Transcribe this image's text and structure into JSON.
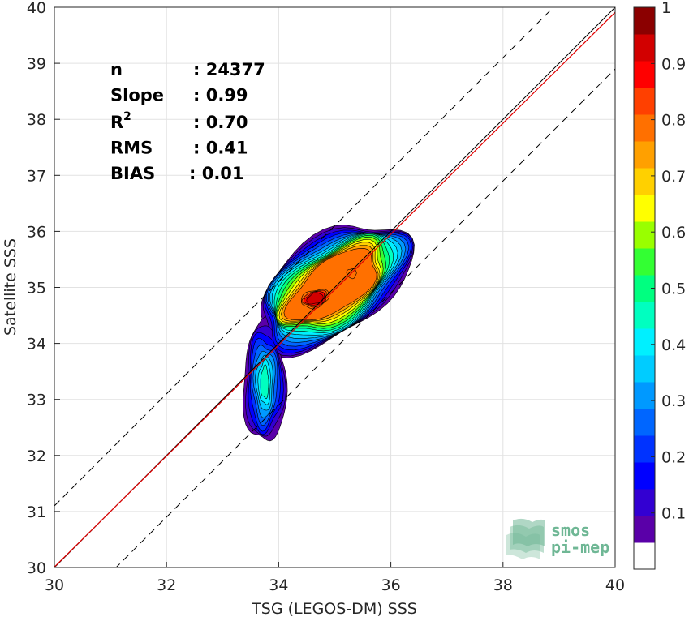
{
  "chart_data": {
    "type": "heatmap",
    "subtype": "filled-contour density scatter",
    "xlabel": "TSG (LEGOS-DM) SSS",
    "ylabel": "Satellite SSS",
    "xlim": [
      30,
      40
    ],
    "ylim": [
      30,
      40
    ],
    "xticks": [
      "30",
      "32",
      "34",
      "36",
      "38",
      "40"
    ],
    "yticks": [
      "30",
      "31",
      "32",
      "33",
      "34",
      "35",
      "36",
      "37",
      "38",
      "39",
      "40"
    ],
    "grid": true,
    "stats": [
      {
        "label": "n",
        "value": ": 24377"
      },
      {
        "label": "Slope",
        "value": ": 0.99"
      },
      {
        "label": "R",
        "sup": "2",
        "value": ": 0.70"
      },
      {
        "label": "RMS",
        "value": ": 0.41"
      },
      {
        "label": "BIAS",
        "value": ": 0.01"
      }
    ],
    "lines": {
      "identity": {
        "color": "#000000",
        "x": [
          30,
          40
        ],
        "y": [
          30,
          40
        ]
      },
      "fit": {
        "color": "#e00000",
        "x": [
          30,
          40
        ],
        "y": [
          30.01,
          39.91
        ]
      },
      "upper_band": {
        "style": "dashed",
        "offset": 1.1
      },
      "lower_band": {
        "style": "dashed",
        "offset": -1.1
      }
    },
    "density_peaks": [
      {
        "x": 34.65,
        "y": 34.8,
        "density": 1.0
      },
      {
        "x": 35.3,
        "y": 35.25,
        "density": 0.8
      },
      {
        "x": 33.75,
        "y": 33.4,
        "density": 0.45
      }
    ],
    "contour_levels": [
      0.05,
      0.1,
      0.15,
      0.2,
      0.25,
      0.3,
      0.35,
      0.4,
      0.45,
      0.5,
      0.55,
      0.6,
      0.65,
      0.7,
      0.75,
      0.8,
      0.85,
      0.9,
      0.95
    ],
    "colorbar": {
      "range": [
        0,
        1
      ],
      "ticks": [
        "0.1",
        "0.2",
        "0.3",
        "0.4",
        "0.5",
        "0.6",
        "0.7",
        "0.8",
        "0.9",
        "1"
      ],
      "colors": [
        "#ffffff",
        "#5a00a8",
        "#3300d2",
        "#0000ff",
        "#0033ff",
        "#0066ff",
        "#0099ff",
        "#00ccff",
        "#00f0ff",
        "#00ffc0",
        "#00ff80",
        "#33ff33",
        "#99ff00",
        "#ffff00",
        "#ffd000",
        "#ffa000",
        "#ff7000",
        "#ff4000",
        "#ff0000",
        "#d20000",
        "#8b0000"
      ]
    }
  },
  "logo": {
    "line1": "smos",
    "line2": "pi-mep"
  }
}
